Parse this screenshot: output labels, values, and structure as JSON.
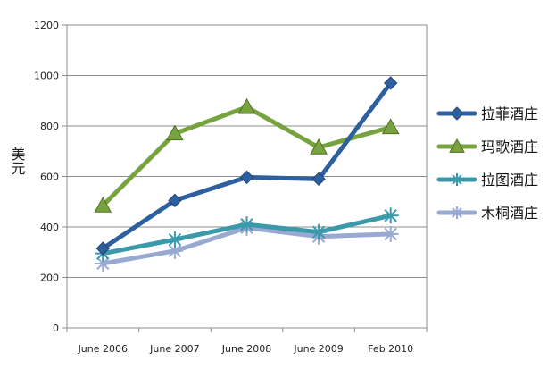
{
  "chart_data": {
    "type": "line",
    "title": "",
    "xlabel": "",
    "ylabel": "美元",
    "ylim": [
      0,
      1200
    ],
    "yticks": [
      0,
      200,
      400,
      600,
      800,
      1000,
      1200
    ],
    "categories": [
      "June 2006",
      "June 2007",
      "June 2008",
      "June 2009",
      "Feb 2010"
    ],
    "grid": true,
    "legend_position": "right",
    "series": [
      {
        "name": "拉菲酒庄",
        "values": [
          315,
          505,
          597,
          590,
          970
        ],
        "color": "#2e5f9e",
        "marker": "diamond"
      },
      {
        "name": "玛歌酒庄",
        "values": [
          485,
          770,
          875,
          715,
          795
        ],
        "color": "#77a33e",
        "marker": "triangle"
      },
      {
        "name": "拉图酒庄",
        "values": [
          295,
          350,
          410,
          380,
          445
        ],
        "color": "#3a9aaa",
        "marker": "asterisk"
      },
      {
        "name": "木桐酒庄",
        "values": [
          255,
          305,
          397,
          362,
          372
        ],
        "color": "#98a9d2",
        "marker": "asterisk"
      }
    ]
  }
}
